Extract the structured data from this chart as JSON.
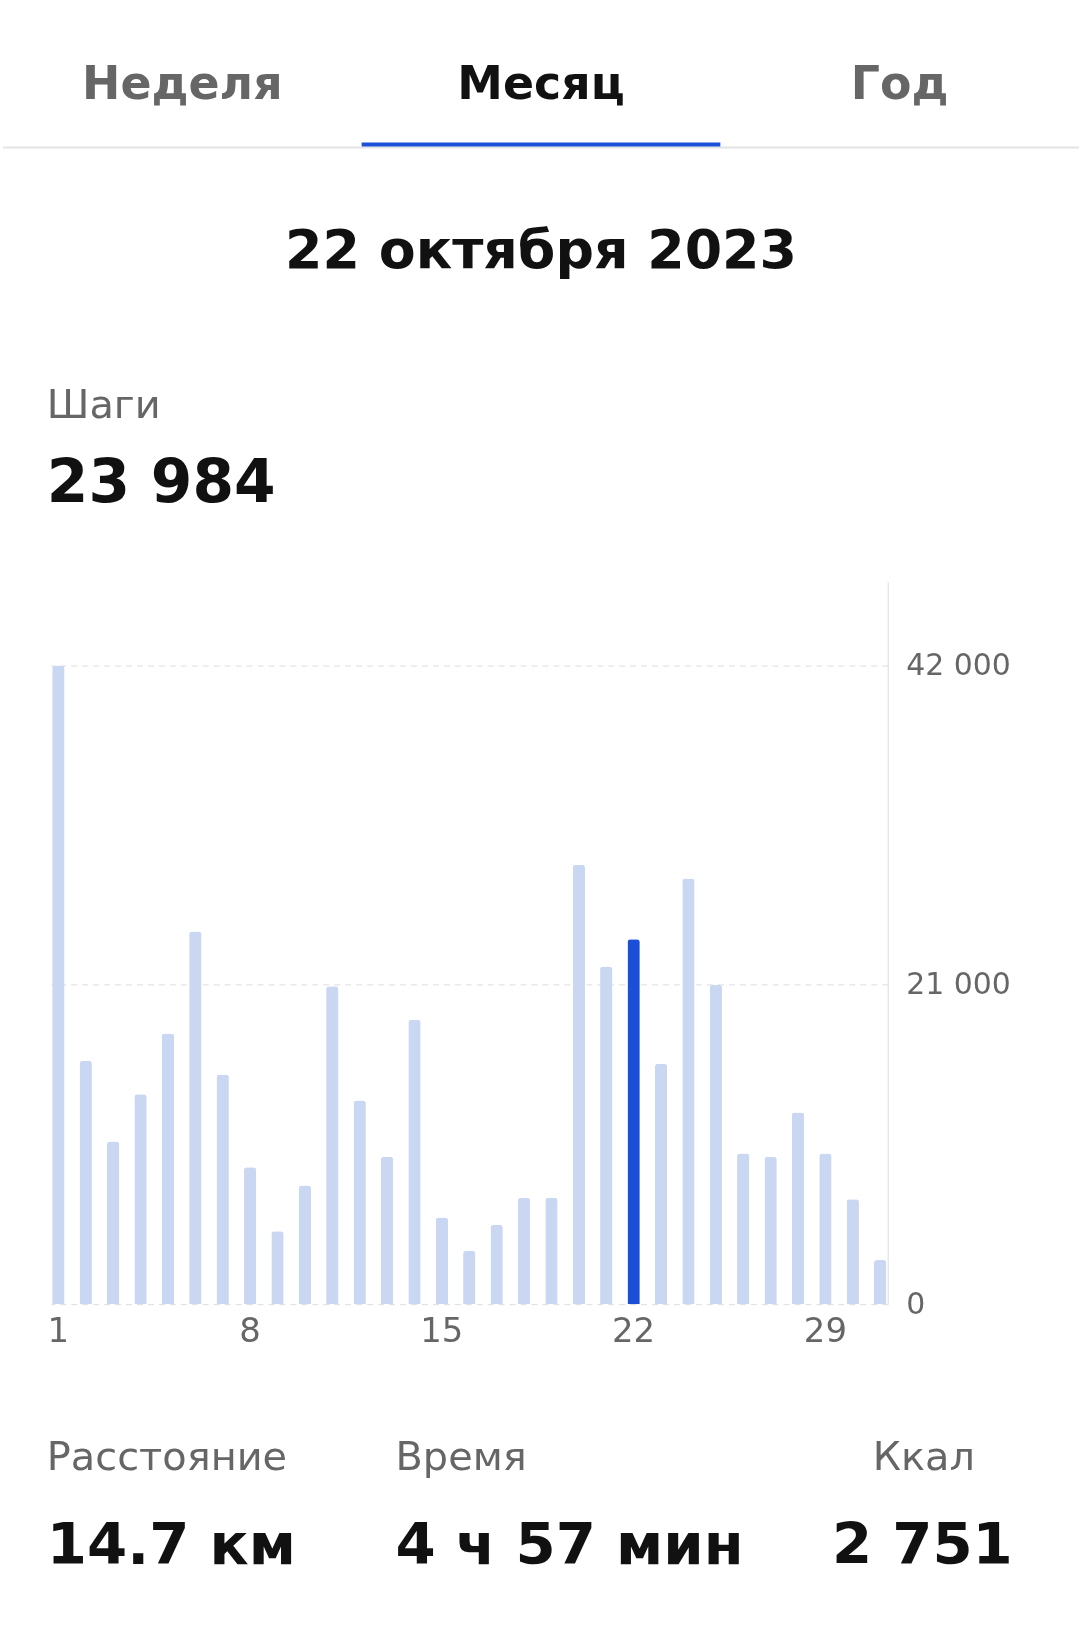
{
  "chart_data": {
    "type": "bar",
    "title": "Шаги",
    "subtitle": "23 984",
    "annotations": [
      "Неделя",
      "Месяц",
      "Год",
      "22 октября 2023",
      "Расстояние",
      "14.7 км",
      "Время",
      "4 ч 57 мин",
      "Ккал",
      "2 751"
    ],
    "categories": [
      "1",
      null,
      null,
      null,
      null,
      null,
      null,
      "8",
      null,
      null,
      null,
      null,
      null,
      null,
      "15",
      null,
      null,
      null,
      null,
      null,
      null,
      "22",
      null,
      null,
      null,
      null,
      null,
      null,
      "29",
      null,
      null
    ],
    "values": [
      42000,
      16000,
      10700,
      13800,
      17800,
      24500,
      15100,
      9000,
      4800,
      7800,
      20900,
      13400,
      9700,
      18700,
      5700,
      3500,
      5200,
      7000,
      7000,
      28900,
      22200,
      24000,
      15800,
      28000,
      21000,
      9900,
      9700,
      12600,
      9900,
      6900,
      2900
    ],
    "colors": [
      "#c9d7f3",
      "#c9d7f3",
      "#c9d7f3",
      "#c9d7f3",
      "#c9d7f3",
      "#c9d7f3",
      "#c9d7f3",
      "#c9d7f3",
      "#c9d7f3",
      "#c9d7f3",
      "#c9d7f3",
      "#c9d7f3",
      "#c9d7f3",
      "#c9d7f3",
      "#c9d7f3",
      "#c9d7f3",
      "#c9d7f3",
      "#c9d7f3",
      "#c9d7f3",
      "#c9d7f3",
      "#c9d7f3",
      "#1c4fd8",
      "#c9d7f3",
      "#c9d7f3",
      "#c9d7f3",
      "#c9d7f3",
      "#c9d7f3",
      "#c9d7f3",
      "#c9d7f3",
      "#c9d7f3",
      "#c9d7f3"
    ],
    "ylim": [
      0,
      47500
    ],
    "yticks": [
      0,
      {
        "value": 21000,
        "label": "21 000"
      },
      {
        "value": 42000,
        "label": "42 000"
      }
    ],
    "grid": "y"
  }
}
